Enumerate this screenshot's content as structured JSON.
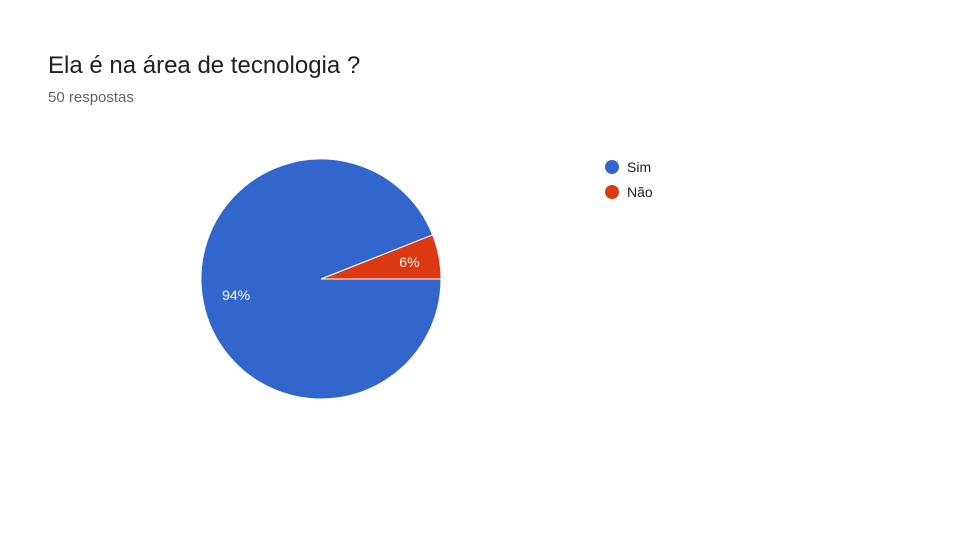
{
  "header": {
    "title": "Ela é na área de tecnologia ?",
    "subtitle": "50 respostas"
  },
  "chart_data": {
    "type": "pie",
    "categories": [
      "Sim",
      "Não"
    ],
    "values": [
      94,
      6
    ],
    "value_labels": [
      "94%",
      "6%"
    ],
    "colors": [
      "#3366cc",
      "#dc3912"
    ],
    "start_angle_deg": 0,
    "direction": "counterclockwise",
    "legend": "right",
    "legend_entries": [
      "Sim",
      "Não"
    ]
  }
}
